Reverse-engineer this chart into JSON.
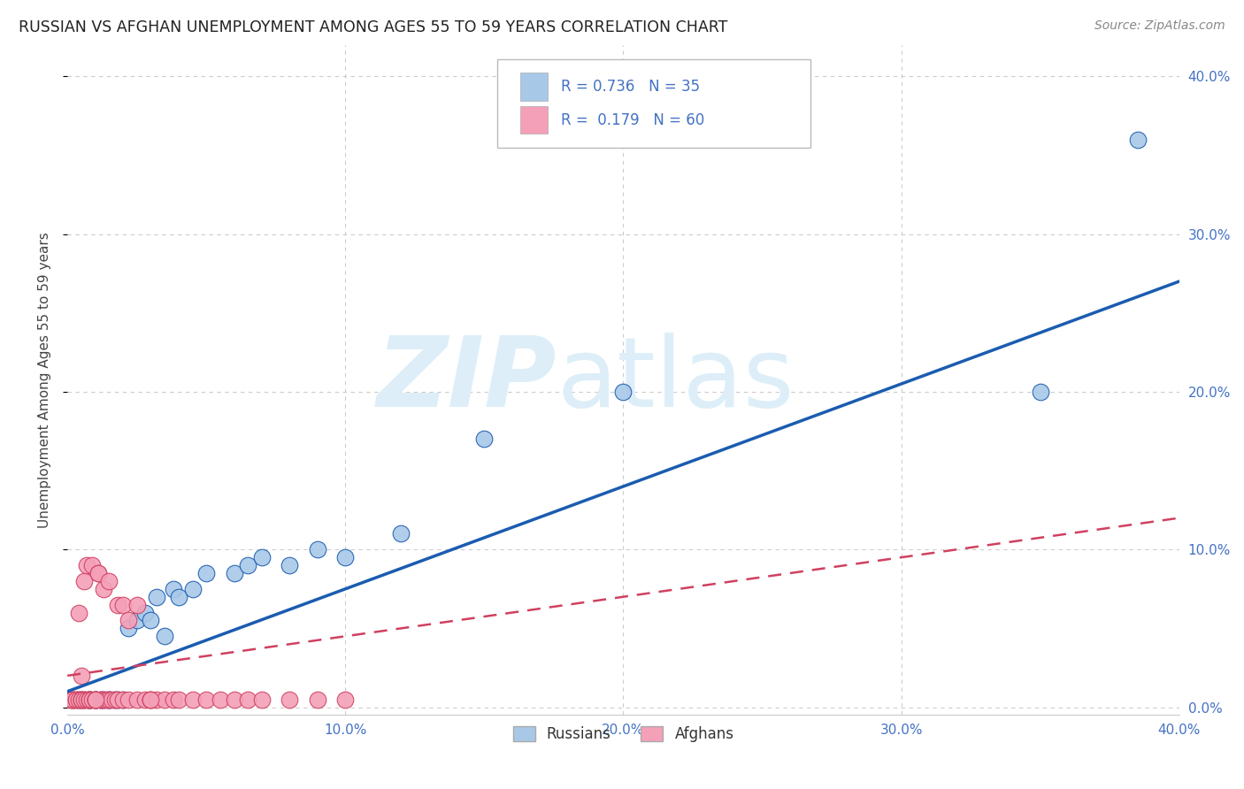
{
  "title": "RUSSIAN VS AFGHAN UNEMPLOYMENT AMONG AGES 55 TO 59 YEARS CORRELATION CHART",
  "source": "Source: ZipAtlas.com",
  "ylabel": "Unemployment Among Ages 55 to 59 years",
  "xlim": [
    0.0,
    0.4
  ],
  "ylim": [
    -0.005,
    0.42
  ],
  "xticks": [
    0.0,
    0.1,
    0.2,
    0.3,
    0.4
  ],
  "yticks": [
    0.0,
    0.1,
    0.2,
    0.3,
    0.4
  ],
  "ytick_labels_right": [
    "0.0%",
    "10.0%",
    "20.0%",
    "30.0%",
    "40.0%"
  ],
  "xtick_labels": [
    "0.0%",
    "10.0%",
    "20.0%",
    "30.0%",
    "40.0%"
  ],
  "russian_color": "#a8c8e8",
  "afghan_color": "#f4a0b8",
  "russian_line_color": "#1a5cb0",
  "afghan_line_color": "#d04060",
  "watermark_color": "#ddeef8",
  "russian_x": [
    0.002,
    0.004,
    0.006,
    0.008,
    0.008,
    0.01,
    0.01,
    0.012,
    0.013,
    0.015,
    0.015,
    0.017,
    0.018,
    0.02,
    0.022,
    0.025,
    0.028,
    0.03,
    0.032,
    0.035,
    0.038,
    0.04,
    0.045,
    0.05,
    0.06,
    0.065,
    0.07,
    0.08,
    0.09,
    0.1,
    0.12,
    0.15,
    0.2,
    0.35,
    0.385
  ],
  "russian_y": [
    0.005,
    0.005,
    0.005,
    0.005,
    0.005,
    0.005,
    0.005,
    0.005,
    0.005,
    0.005,
    0.005,
    0.005,
    0.005,
    0.005,
    0.05,
    0.055,
    0.06,
    0.055,
    0.07,
    0.045,
    0.075,
    0.07,
    0.075,
    0.085,
    0.085,
    0.09,
    0.095,
    0.09,
    0.1,
    0.095,
    0.11,
    0.17,
    0.2,
    0.2,
    0.36
  ],
  "afghan_x": [
    0.001,
    0.002,
    0.002,
    0.003,
    0.003,
    0.004,
    0.004,
    0.005,
    0.005,
    0.005,
    0.006,
    0.006,
    0.007,
    0.007,
    0.008,
    0.008,
    0.008,
    0.009,
    0.009,
    0.01,
    0.01,
    0.01,
    0.011,
    0.011,
    0.012,
    0.012,
    0.013,
    0.013,
    0.014,
    0.015,
    0.015,
    0.016,
    0.017,
    0.018,
    0.018,
    0.02,
    0.02,
    0.022,
    0.022,
    0.025,
    0.025,
    0.028,
    0.03,
    0.03,
    0.032,
    0.035,
    0.038,
    0.04,
    0.045,
    0.05,
    0.055,
    0.06,
    0.065,
    0.07,
    0.08,
    0.09,
    0.1,
    0.03,
    0.01,
    0.005
  ],
  "afghan_y": [
    0.005,
    0.005,
    0.005,
    0.005,
    0.005,
    0.005,
    0.06,
    0.005,
    0.005,
    0.005,
    0.005,
    0.08,
    0.005,
    0.09,
    0.005,
    0.005,
    0.005,
    0.005,
    0.09,
    0.005,
    0.005,
    0.005,
    0.085,
    0.085,
    0.005,
    0.005,
    0.005,
    0.075,
    0.005,
    0.005,
    0.08,
    0.005,
    0.005,
    0.005,
    0.065,
    0.005,
    0.065,
    0.005,
    0.055,
    0.065,
    0.005,
    0.005,
    0.005,
    0.005,
    0.005,
    0.005,
    0.005,
    0.005,
    0.005,
    0.005,
    0.005,
    0.005,
    0.005,
    0.005,
    0.005,
    0.005,
    0.005,
    0.005,
    0.005,
    0.02
  ],
  "russian_line_x": [
    0.0,
    0.4
  ],
  "russian_line_y": [
    0.01,
    0.27
  ],
  "afghan_line_x": [
    0.0,
    0.4
  ],
  "afghan_line_y": [
    0.02,
    0.12
  ]
}
